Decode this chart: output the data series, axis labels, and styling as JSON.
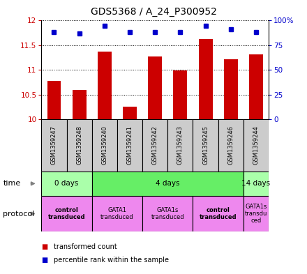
{
  "title": "GDS5368 / A_24_P300952",
  "samples": [
    "GSM1359247",
    "GSM1359248",
    "GSM1359240",
    "GSM1359241",
    "GSM1359242",
    "GSM1359243",
    "GSM1359245",
    "GSM1359246",
    "GSM1359244"
  ],
  "transformed_counts": [
    10.78,
    10.6,
    11.37,
    10.25,
    11.27,
    10.99,
    11.63,
    11.22,
    11.32
  ],
  "percentile_ranks": [
    88,
    87,
    95,
    88,
    88,
    88,
    95,
    91,
    88
  ],
  "bar_color": "#cc0000",
  "dot_color": "#0000cc",
  "ylim_left": [
    10.0,
    12.0
  ],
  "ylim_right": [
    0,
    100
  ],
  "yticks_left": [
    10.0,
    10.5,
    11.0,
    11.5,
    12.0
  ],
  "yticks_right": [
    0,
    25,
    50,
    75,
    100
  ],
  "ytick_labels_left": [
    "10",
    "10.5",
    "11",
    "11.5",
    "12"
  ],
  "ytick_labels_right": [
    "0",
    "25",
    "50",
    "75",
    "100%"
  ],
  "time_groups": [
    {
      "label": "0 days",
      "start": 0,
      "end": 2,
      "color": "#aaffaa"
    },
    {
      "label": "4 days",
      "start": 2,
      "end": 8,
      "color": "#66ee66"
    },
    {
      "label": "14 days",
      "start": 8,
      "end": 9,
      "color": "#aaffaa"
    }
  ],
  "protocol_groups": [
    {
      "label": "control\ntransduced",
      "start": 0,
      "end": 2,
      "color": "#ee88ee",
      "bold": true
    },
    {
      "label": "GATA1\ntransduced",
      "start": 2,
      "end": 4,
      "color": "#ee88ee",
      "bold": false
    },
    {
      "label": "GATA1s\ntransduced",
      "start": 4,
      "end": 6,
      "color": "#ee88ee",
      "bold": false
    },
    {
      "label": "control\ntransduced",
      "start": 6,
      "end": 8,
      "color": "#ee88ee",
      "bold": true
    },
    {
      "label": "GATA1s\ntransdu\nced",
      "start": 8,
      "end": 9,
      "color": "#ee88ee",
      "bold": false
    }
  ],
  "legend_items": [
    {
      "color": "#cc0000",
      "label": "transformed count"
    },
    {
      "color": "#0000cc",
      "label": "percentile rank within the sample"
    }
  ],
  "sample_box_color": "#cccccc",
  "title_fontsize": 10,
  "tick_fontsize": 7.5,
  "label_fontsize": 7.5
}
